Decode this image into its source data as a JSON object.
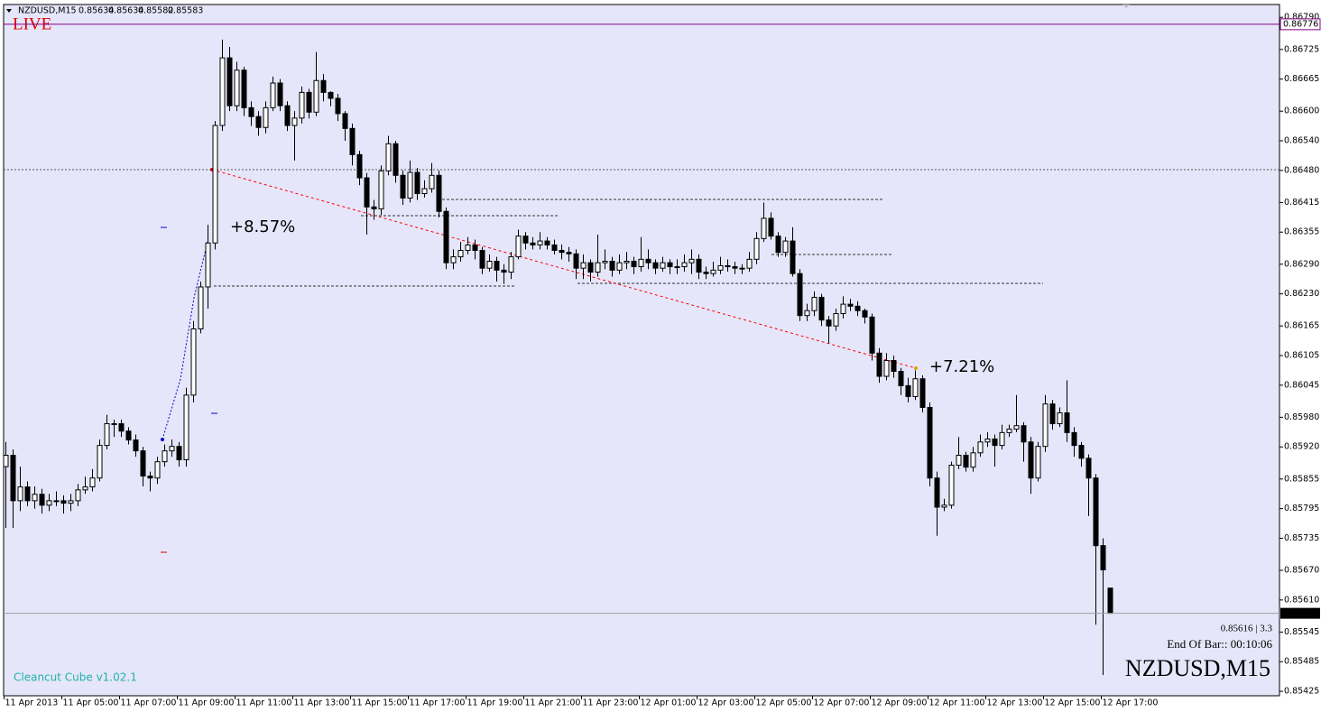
{
  "chart_data": {
    "type": "candlestick",
    "title": "NZDUSD,M15",
    "categories": [
      "11 Apr 2013",
      null,
      null,
      null,
      null,
      null,
      null,
      null,
      "11 Apr 05:00",
      null,
      null,
      null,
      null,
      null,
      null,
      null,
      "11 Apr 07:00",
      null,
      null,
      null,
      null,
      null,
      null,
      null,
      "11 Apr 09:00",
      null,
      null,
      null,
      null,
      null,
      null,
      null,
      "11 Apr 11:00",
      null,
      null,
      null,
      null,
      null,
      null,
      null,
      "11 Apr 13:00",
      null,
      null,
      null,
      null,
      null,
      null,
      null,
      "11 Apr 15:00",
      null,
      null,
      null,
      null,
      null,
      null,
      null,
      "11 Apr 17:00",
      null,
      null,
      null,
      null,
      null,
      null,
      null,
      "11 Apr 19:00",
      null,
      null,
      null,
      null,
      null,
      null,
      null,
      "11 Apr 21:00",
      null,
      null,
      null,
      null,
      null,
      null,
      null,
      "11 Apr 23:00",
      null,
      null,
      null,
      null,
      null,
      null,
      null,
      "12 Apr 01:00",
      null,
      null,
      null,
      null,
      null,
      null,
      null,
      "12 Apr 03:00",
      null,
      null,
      null,
      null,
      null,
      null,
      null,
      "12 Apr 05:00",
      null,
      null,
      null,
      null,
      null,
      null,
      null,
      "12 Apr 07:00",
      null,
      null,
      null,
      null,
      null,
      null,
      null,
      "12 Apr 09:00",
      null,
      null,
      null,
      null,
      null,
      null,
      null,
      "12 Apr 11:00",
      null,
      null,
      null,
      null,
      null,
      null,
      null,
      "12 Apr 13:00",
      null,
      null,
      null,
      null,
      null,
      null,
      null,
      "12 Apr 15:00",
      null,
      null,
      null,
      null,
      null,
      null,
      null,
      "12 Apr 17:00",
      null
    ],
    "open": [
      0.8588,
      0.85903,
      0.85811,
      0.85839,
      0.85811,
      0.85824,
      0.85802,
      0.85811,
      0.85811,
      0.85806,
      0.85811,
      0.85833,
      0.85839,
      0.85857,
      0.85923,
      0.85967,
      0.85967,
      0.85952,
      0.85934,
      0.85912,
      0.85861,
      0.85857,
      0.8589,
      0.85912,
      0.85921,
      0.85894,
      0.86025,
      0.86159,
      0.86244,
      0.86333,
      0.86571,
      0.86708,
      0.86611,
      0.86683,
      0.86607,
      0.86589,
      0.86567,
      0.86607,
      0.86657,
      0.86611,
      0.86571,
      0.86586,
      0.86638,
      0.86598,
      0.86662,
      0.86638,
      0.86626,
      0.86595,
      0.86565,
      0.86512,
      0.86465,
      0.86406,
      0.86402,
      0.86479,
      0.86534,
      0.8647,
      0.86424,
      0.86476,
      0.86433,
      0.86443,
      0.8647,
      0.86397,
      0.86293,
      0.86305,
      0.86318,
      0.86329,
      0.86318,
      0.86282,
      0.86296,
      0.86278,
      0.86274,
      0.86305,
      0.86347,
      0.86333,
      0.86329,
      0.86337,
      0.86329,
      0.86318,
      0.86314,
      0.86311,
      0.86282,
      0.86293,
      0.86274,
      0.86293,
      0.86296,
      0.86278,
      0.86293,
      0.86296,
      0.86285,
      0.863,
      0.86293,
      0.86282,
      0.86293,
      0.86285,
      0.86285,
      0.86293,
      0.863,
      0.86274,
      0.86271,
      0.86278,
      0.86287,
      0.86285,
      0.86282,
      0.86282,
      0.863,
      0.86342,
      0.86383,
      0.86347,
      0.86314,
      0.86337,
      0.86271,
      0.86186,
      0.86196,
      0.86223,
      0.86177,
      0.86165,
      0.8619,
      0.86209,
      0.86205,
      0.86196,
      0.86183,
      0.8611,
      0.86063,
      0.86095,
      0.86073,
      0.86044,
      0.86022,
      0.86058,
      0.86,
      0.85857,
      0.85798,
      0.85802,
      0.85883,
      0.85903,
      0.85879,
      0.85908,
      0.8593,
      0.85936,
      0.85923,
      0.85949,
      0.85956,
      0.85963,
      0.8593,
      0.85857,
      0.85921,
      0.86007,
      0.85967,
      0.85989,
      0.85949,
      0.85923,
      0.85897,
      0.85857,
      0.8572,
      0.85634
    ],
    "high": [
      0.8593,
      0.85915,
      0.8588,
      0.8585,
      0.8584,
      0.85835,
      0.85825,
      0.8583,
      0.85822,
      0.85825,
      0.85845,
      0.8586,
      0.85875,
      0.85935,
      0.85985,
      0.85975,
      0.85975,
      0.8596,
      0.85945,
      0.8592,
      0.8587,
      0.859,
      0.85925,
      0.85935,
      0.8593,
      0.8604,
      0.86175,
      0.86255,
      0.8637,
      0.8658,
      0.86745,
      0.8673,
      0.867,
      0.8669,
      0.8662,
      0.866,
      0.8662,
      0.8667,
      0.86665,
      0.8662,
      0.866,
      0.8665,
      0.86645,
      0.8672,
      0.86675,
      0.8664,
      0.86635,
      0.866,
      0.86575,
      0.8652,
      0.86475,
      0.8642,
      0.8649,
      0.8655,
      0.8654,
      0.8648,
      0.865,
      0.86485,
      0.8646,
      0.86495,
      0.8648,
      0.86405,
      0.8632,
      0.86335,
      0.86345,
      0.8634,
      0.86325,
      0.8631,
      0.86305,
      0.8629,
      0.86315,
      0.8636,
      0.86355,
      0.86345,
      0.86355,
      0.86345,
      0.8634,
      0.8633,
      0.86325,
      0.8632,
      0.8631,
      0.863,
      0.8635,
      0.8632,
      0.86305,
      0.8631,
      0.86315,
      0.86305,
      0.86345,
      0.8632,
      0.863,
      0.86305,
      0.863,
      0.863,
      0.8631,
      0.8632,
      0.8631,
      0.86285,
      0.86295,
      0.86305,
      0.863,
      0.86295,
      0.8629,
      0.86315,
      0.86355,
      0.86415,
      0.86395,
      0.86355,
      0.86345,
      0.86365,
      0.8628,
      0.8621,
      0.86235,
      0.8623,
      0.86185,
      0.862,
      0.86225,
      0.8622,
      0.86215,
      0.862,
      0.8619,
      0.8612,
      0.8611,
      0.86105,
      0.8608,
      0.8606,
      0.86075,
      0.86065,
      0.8601,
      0.8587,
      0.85815,
      0.8589,
      0.8594,
      0.8591,
      0.8592,
      0.85945,
      0.8595,
      0.85945,
      0.85965,
      0.85965,
      0.86025,
      0.8597,
      0.8594,
      0.8593,
      0.86025,
      0.86015,
      0.86,
      0.86055,
      0.8596,
      0.8593,
      0.85905,
      0.85865,
      0.85735,
      0.85634
    ],
    "low": [
      0.85756,
      0.85756,
      0.8579,
      0.858,
      0.85795,
      0.85785,
      0.8579,
      0.858,
      0.85785,
      0.8579,
      0.858,
      0.85825,
      0.8583,
      0.8585,
      0.85915,
      0.8594,
      0.8594,
      0.85925,
      0.859,
      0.8584,
      0.8583,
      0.85845,
      0.8588,
      0.859,
      0.8588,
      0.8588,
      0.8601,
      0.8615,
      0.862,
      0.8632,
      0.8656,
      0.866,
      0.866,
      0.8659,
      0.8657,
      0.8655,
      0.86555,
      0.866,
      0.866,
      0.8656,
      0.865,
      0.86575,
      0.86585,
      0.8659,
      0.8662,
      0.8661,
      0.8658,
      0.8654,
      0.8649,
      0.8645,
      0.8635,
      0.8638,
      0.8639,
      0.8647,
      0.86455,
      0.8641,
      0.86415,
      0.8642,
      0.86425,
      0.86435,
      0.86385,
      0.8628,
      0.8628,
      0.86295,
      0.8631,
      0.863,
      0.8627,
      0.86275,
      0.86255,
      0.8625,
      0.8626,
      0.863,
      0.8632,
      0.8632,
      0.8632,
      0.8632,
      0.8631,
      0.863,
      0.86295,
      0.8626,
      0.8626,
      0.86255,
      0.86265,
      0.8628,
      0.86265,
      0.8627,
      0.8628,
      0.8627,
      0.86275,
      0.8628,
      0.8627,
      0.86275,
      0.8627,
      0.8627,
      0.86275,
      0.8627,
      0.8626,
      0.8626,
      0.86265,
      0.8627,
      0.86275,
      0.8627,
      0.8627,
      0.86275,
      0.8629,
      0.86335,
      0.8634,
      0.86305,
      0.86305,
      0.86265,
      0.86175,
      0.86175,
      0.86185,
      0.86165,
      0.8613,
      0.86155,
      0.8618,
      0.86195,
      0.86185,
      0.8617,
      0.86095,
      0.8605,
      0.86055,
      0.8606,
      0.86025,
      0.8601,
      0.86015,
      0.8599,
      0.8584,
      0.8574,
      0.8579,
      0.85795,
      0.85875,
      0.8587,
      0.8587,
      0.859,
      0.8592,
      0.8588,
      0.85915,
      0.8594,
      0.8595,
      0.8589,
      0.85825,
      0.8585,
      0.8591,
      0.85955,
      0.8596,
      0.8593,
      0.859,
      0.8588,
      0.8578,
      0.8556,
      0.85458,
      0.85582
    ],
    "close": [
      0.85903,
      0.85811,
      0.85839,
      0.85811,
      0.85824,
      0.85802,
      0.85811,
      0.85811,
      0.85806,
      0.85811,
      0.85833,
      0.85839,
      0.85857,
      0.85923,
      0.85967,
      0.85967,
      0.85952,
      0.85934,
      0.85912,
      0.85861,
      0.85857,
      0.8589,
      0.85912,
      0.85921,
      0.85894,
      0.86025,
      0.86159,
      0.86244,
      0.86333,
      0.86571,
      0.86708,
      0.86611,
      0.86683,
      0.86607,
      0.86589,
      0.86567,
      0.86607,
      0.86657,
      0.86611,
      0.86571,
      0.86586,
      0.86638,
      0.86598,
      0.86662,
      0.86638,
      0.86626,
      0.86595,
      0.86565,
      0.86512,
      0.86465,
      0.86406,
      0.86402,
      0.86479,
      0.86534,
      0.8647,
      0.86424,
      0.86476,
      0.86433,
      0.86443,
      0.8647,
      0.86397,
      0.86293,
      0.86305,
      0.86318,
      0.86329,
      0.86318,
      0.86282,
      0.86296,
      0.86278,
      0.86274,
      0.86305,
      0.86347,
      0.86333,
      0.86329,
      0.86337,
      0.86329,
      0.86318,
      0.86314,
      0.86311,
      0.86282,
      0.86293,
      0.86274,
      0.86293,
      0.86296,
      0.86278,
      0.86293,
      0.86296,
      0.86285,
      0.863,
      0.86293,
      0.86282,
      0.86293,
      0.86285,
      0.86285,
      0.86293,
      0.863,
      0.86274,
      0.86271,
      0.86278,
      0.86287,
      0.86285,
      0.86282,
      0.86282,
      0.863,
      0.86342,
      0.86383,
      0.86347,
      0.86314,
      0.86337,
      0.86271,
      0.86186,
      0.86196,
      0.86223,
      0.86177,
      0.86165,
      0.8619,
      0.86209,
      0.86205,
      0.86196,
      0.86183,
      0.8611,
      0.86063,
      0.86095,
      0.86073,
      0.86044,
      0.86022,
      0.86058,
      0.86,
      0.85857,
      0.85798,
      0.85802,
      0.85883,
      0.85903,
      0.85879,
      0.85908,
      0.8593,
      0.85936,
      0.85923,
      0.85949,
      0.85956,
      0.85963,
      0.8593,
      0.85857,
      0.85921,
      0.86007,
      0.85967,
      0.85989,
      0.85949,
      0.85923,
      0.85897,
      0.85857,
      0.8572,
      0.85671,
      0.85583
    ],
    "up_color": "#ffffff",
    "down_color": "#000000",
    "background": "#e6e6fa",
    "ylim": [
      0.85416,
      0.86816
    ],
    "yticks": [
      {
        "value": 0.8679,
        "label": "0.86790"
      },
      0.86725,
      0.86665,
      {
        "value": 0.866,
        "label": "0.86600"
      },
      {
        "value": 0.8654,
        "label": "0.86540"
      },
      {
        "value": 0.8648,
        "label": "0.86480"
      },
      0.86415,
      0.86355,
      {
        "value": 0.8629,
        "label": "0.86290"
      },
      {
        "value": 0.8623,
        "label": "0.86230"
      },
      0.86165,
      0.86105,
      0.86045,
      {
        "value": 0.8598,
        "label": "0.85980"
      },
      {
        "value": 0.8592,
        "label": "0.85920"
      },
      0.85855,
      0.85795,
      0.85735,
      {
        "value": 0.8567,
        "label": "0.85670"
      },
      {
        "value": 0.8561,
        "label": "0.85610"
      },
      0.85545,
      0.85485,
      0.85425
    ],
    "live_label": "LIVE",
    "live_price": 0.86776,
    "annotations": [
      "+8.57%",
      "+7.21%"
    ],
    "indicator_name": "Cleancut Cube v1.02.1",
    "spread_info": "0.85616 | 3.3",
    "bar_timer": "End Of Bar:: 00:10:06"
  }
}
